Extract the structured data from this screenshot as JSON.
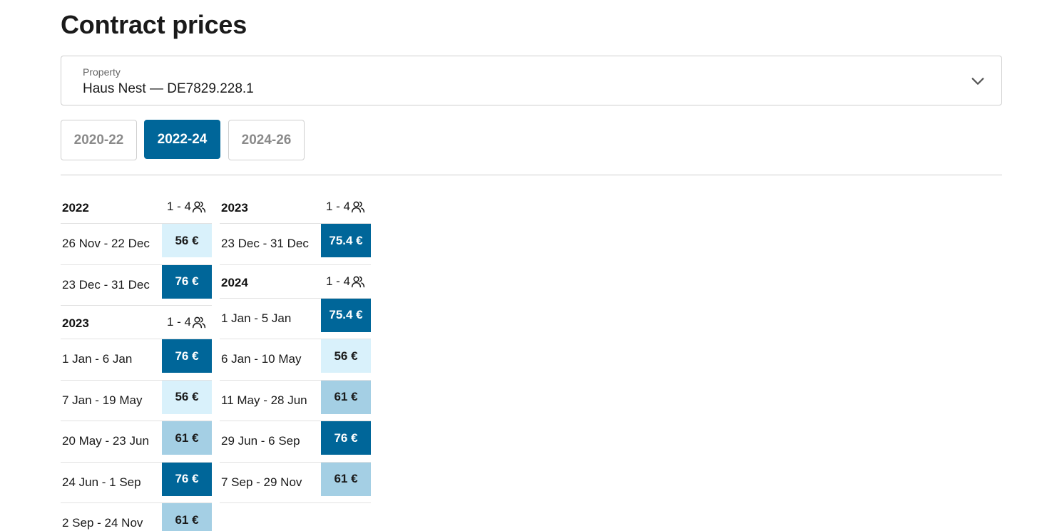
{
  "page": {
    "title": "Contract prices"
  },
  "property": {
    "label": "Property",
    "value": "Haus Nest — DE7829.228.1",
    "icon": "chevron-down-icon"
  },
  "tabs": [
    {
      "label": "2020-22",
      "active": false
    },
    {
      "label": "2022-24",
      "active": true
    },
    {
      "label": "2024-26",
      "active": false
    }
  ],
  "colors": {
    "accent": "#006699",
    "low": "#d9f1fb",
    "mid": "#a4cfe4",
    "high": "#006699"
  },
  "columns": [
    {
      "groups": [
        {
          "year": "2022",
          "occupancy": "1 - 4",
          "icon": "guests-icon",
          "rows": [
            {
              "dates": "26 Nov - 22 Dec",
              "price": "56 €",
              "level": "low"
            },
            {
              "dates": "23 Dec - 31 Dec",
              "price": "76 €",
              "level": "high"
            }
          ]
        },
        {
          "year": "2023",
          "occupancy": "1 - 4",
          "icon": "guests-icon",
          "rows": [
            {
              "dates": "1 Jan - 6 Jan",
              "price": "76 €",
              "level": "high"
            },
            {
              "dates": "7 Jan - 19 May",
              "price": "56 €",
              "level": "low"
            },
            {
              "dates": "20 May - 23 Jun",
              "price": "61 €",
              "level": "mid"
            },
            {
              "dates": "24 Jun - 1 Sep",
              "price": "76 €",
              "level": "high"
            },
            {
              "dates": "2 Sep - 24 Nov",
              "price": "61 €",
              "level": "mid"
            }
          ]
        }
      ]
    },
    {
      "groups": [
        {
          "year": "2023",
          "occupancy": "1 - 4",
          "icon": "guests-icon",
          "rows": [
            {
              "dates": "23 Dec - 31 Dec",
              "price": "75.4 €",
              "level": "high"
            }
          ]
        },
        {
          "year": "2024",
          "occupancy": "1 - 4",
          "icon": "guests-icon",
          "rows": [
            {
              "dates": "1 Jan - 5 Jan",
              "price": "75.4 €",
              "level": "high"
            },
            {
              "dates": "6 Jan - 10 May",
              "price": "56 €",
              "level": "low"
            },
            {
              "dates": "11 May - 28 Jun",
              "price": "61 €",
              "level": "mid"
            },
            {
              "dates": "29 Jun - 6 Sep",
              "price": "76 €",
              "level": "high"
            },
            {
              "dates": "7 Sep - 29 Nov",
              "price": "61 €",
              "level": "mid"
            }
          ]
        }
      ]
    }
  ]
}
